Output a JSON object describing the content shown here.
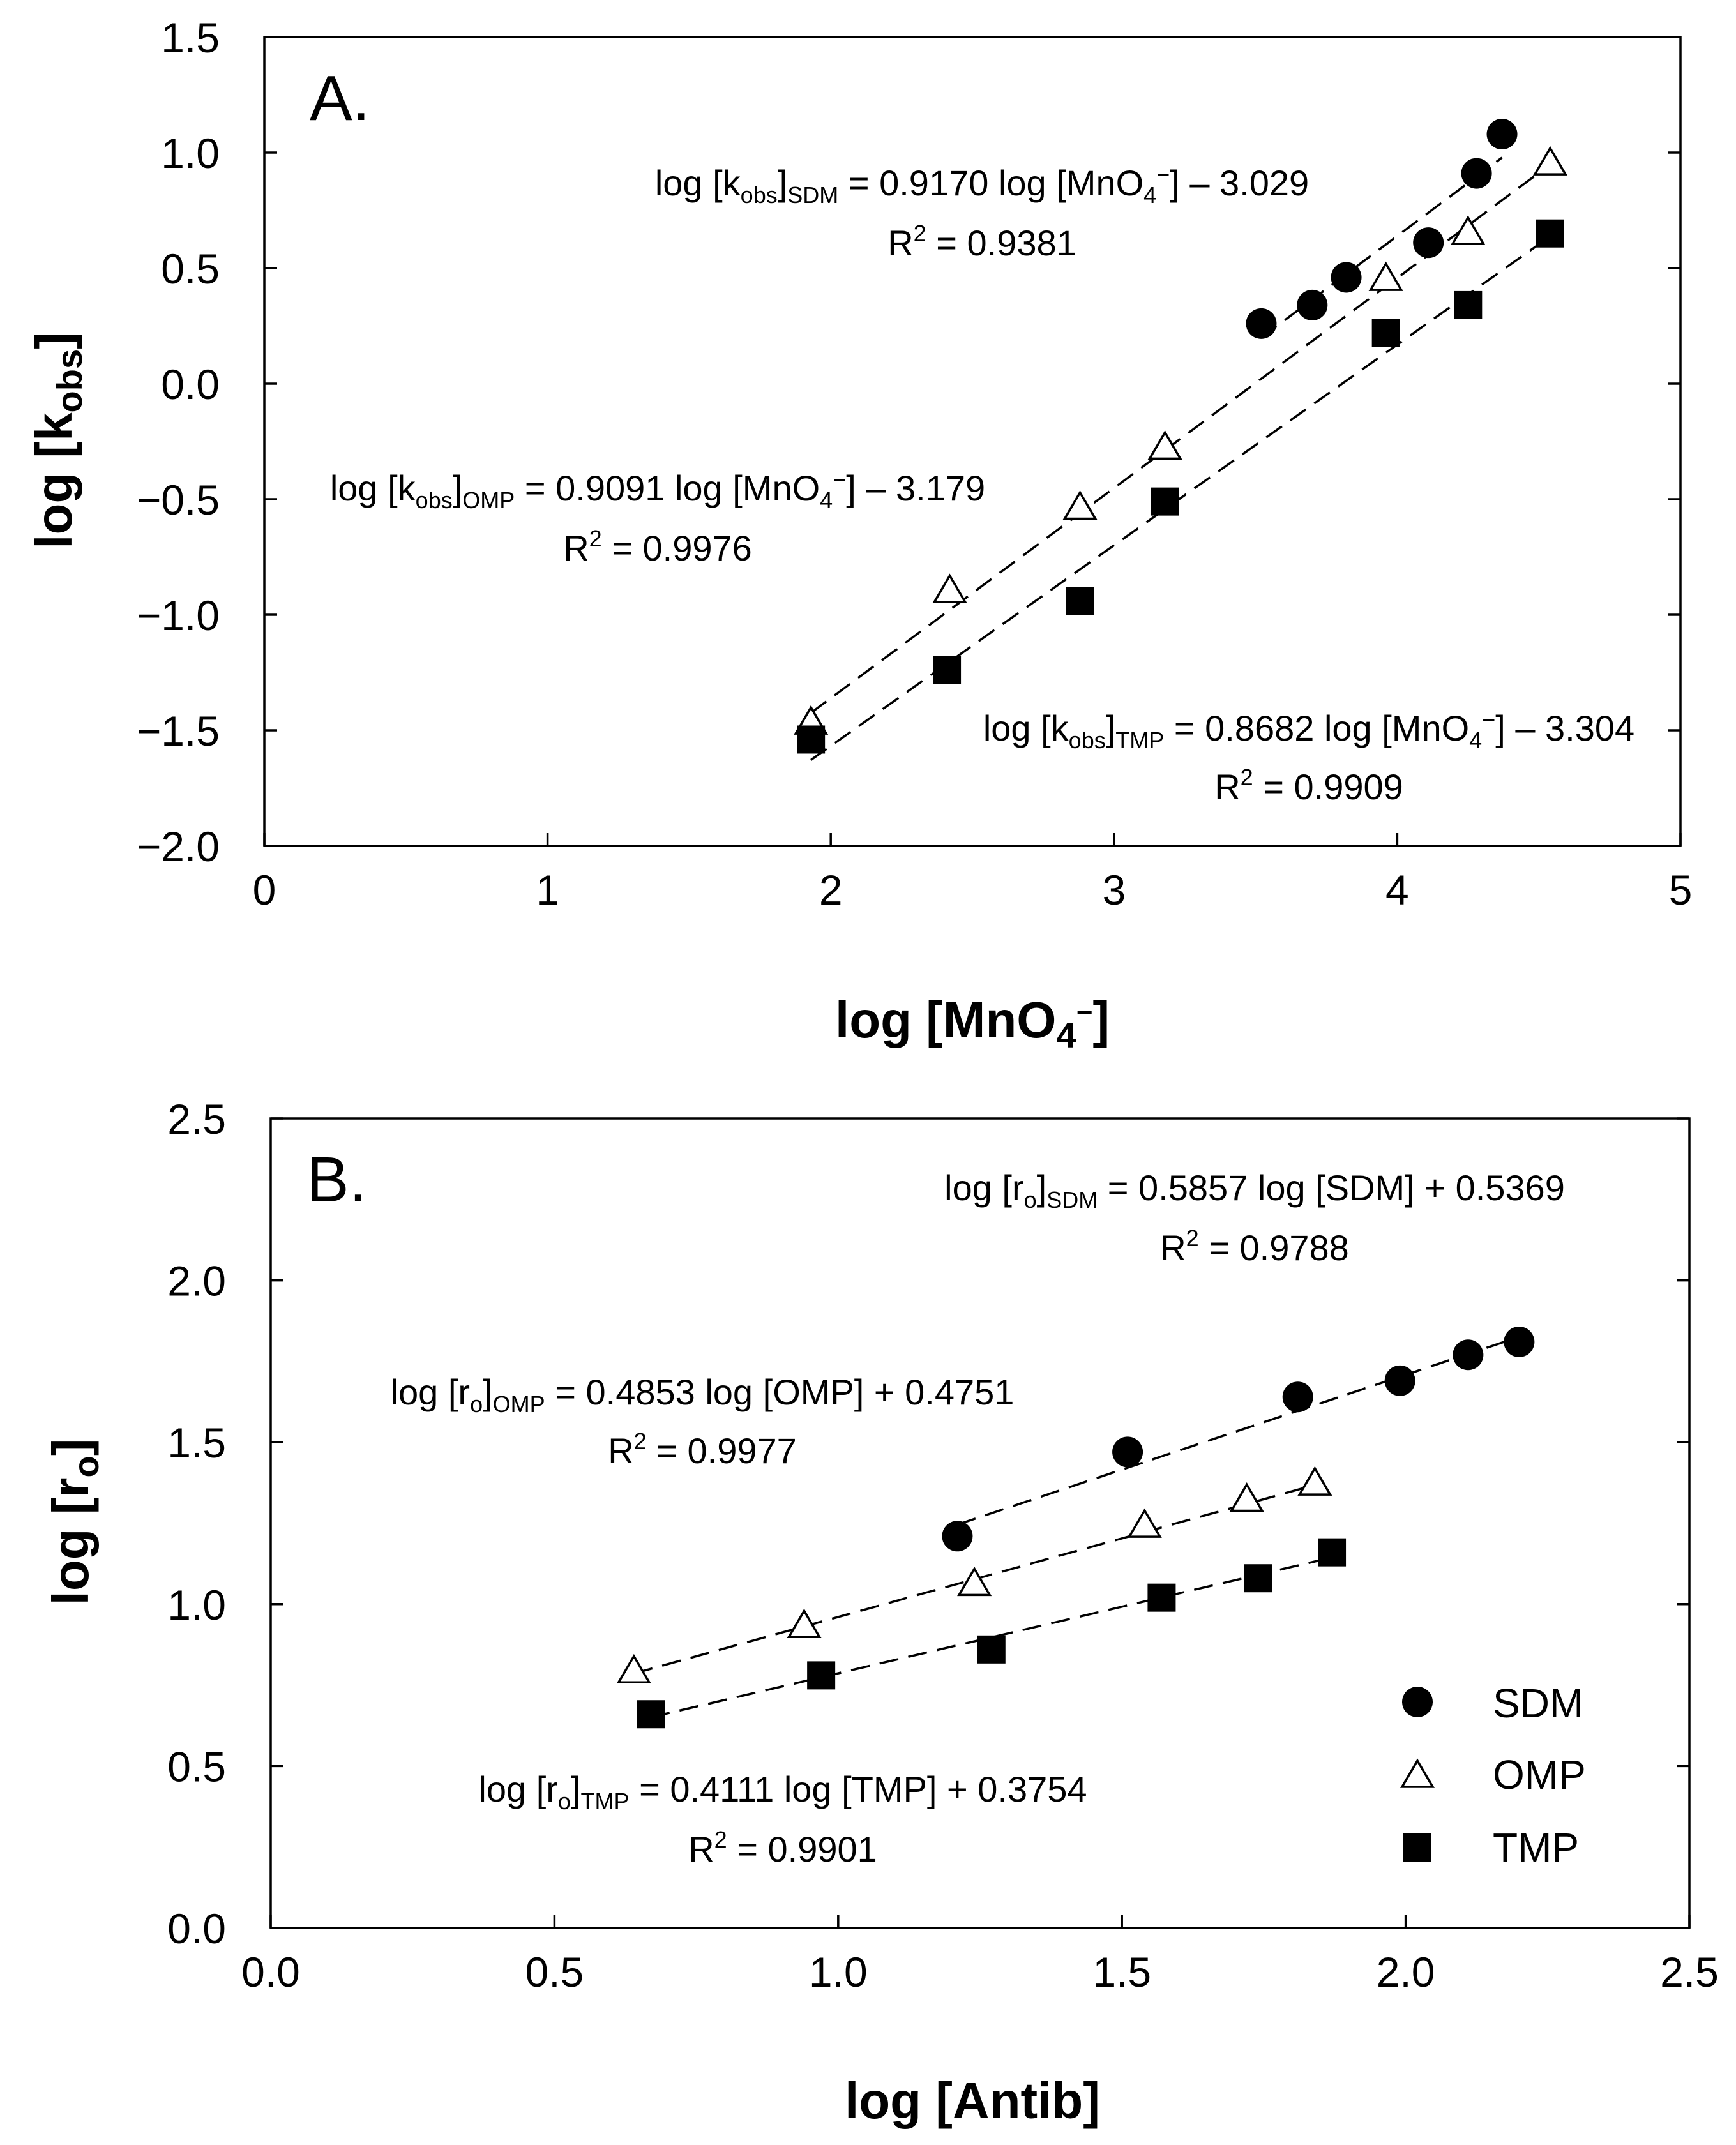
{
  "chart_data": [
    {
      "type": "scatter",
      "panel": "A.",
      "xlabel_main": "log [MnO",
      "xlabel_sub": "4",
      "xlabel_sup": "−",
      "xlabel_end": "]",
      "ylabel_main": "log [k",
      "ylabel_sub": "obs",
      "ylabel_end": "]",
      "xlim": [
        0,
        5
      ],
      "ylim": [
        -2.0,
        1.5
      ],
      "xticks": [
        0,
        1,
        2,
        3,
        4,
        5
      ],
      "xtick_labels": [
        "0",
        "1",
        "2",
        "3",
        "4",
        "5"
      ],
      "yticks": [
        1.5,
        1.0,
        0.5,
        0.0,
        -0.5,
        -1.0,
        -1.5,
        -2.0
      ],
      "ytick_labels": [
        "1.5",
        "1.0",
        "0.5",
        "0.0",
        "−0.5",
        "−1.0",
        "−1.5",
        "−2.0"
      ],
      "series": [
        {
          "name": "SDM",
          "marker": "circle",
          "points": [
            [
              3.52,
              0.26
            ],
            [
              3.7,
              0.34
            ],
            [
              3.82,
              0.46
            ],
            [
              4.11,
              0.61
            ],
            [
              4.28,
              0.91
            ],
            [
              4.37,
              1.08
            ]
          ],
          "fit": {
            "slope": 0.917,
            "intercept": -3.029,
            "x_range": [
              3.52,
              4.37
            ]
          },
          "eq": {
            "pre": "log [k",
            "sub1": "obs",
            "mid": "]",
            "sub2": "SDM",
            "post": " = 0.9170 log [MnO",
            "sub3": "4",
            "sup3": "−",
            "tail": "] – 3.029",
            "r2_pre": "R",
            "r2_sup": "2",
            "r2_post": " = 0.9381"
          }
        },
        {
          "name": "OMP",
          "marker": "triangle",
          "points": [
            [
              1.93,
              -1.47
            ],
            [
              2.42,
              -0.9
            ],
            [
              2.88,
              -0.54
            ],
            [
              3.18,
              -0.28
            ],
            [
              3.96,
              0.45
            ],
            [
              4.25,
              0.65
            ],
            [
              4.54,
              0.95
            ]
          ],
          "fit": {
            "slope": 0.9091,
            "intercept": -3.179,
            "x_range": [
              1.93,
              4.54
            ]
          },
          "eq": {
            "pre": "log [k",
            "sub1": "obs",
            "mid": "]",
            "sub2": "OMP",
            "post": " = 0.9091 log [MnO",
            "sub3": "4",
            "sup3": "−",
            "tail": "] – 3.179",
            "r2_pre": "R",
            "r2_sup": "2",
            "r2_post": " = 0.9976"
          }
        },
        {
          "name": "TMP",
          "marker": "square",
          "points": [
            [
              1.93,
              -1.54
            ],
            [
              2.41,
              -1.24
            ],
            [
              2.88,
              -0.94
            ],
            [
              3.18,
              -0.51
            ],
            [
              3.96,
              0.22
            ],
            [
              4.25,
              0.34
            ],
            [
              4.54,
              0.65
            ]
          ],
          "fit": {
            "slope": 0.8682,
            "intercept": -3.304,
            "x_range": [
              1.93,
              4.54
            ]
          },
          "eq": {
            "pre": "log [k",
            "sub1": "obs",
            "mid": "]",
            "sub2": "TMP",
            "post": " = 0.8682 log [MnO",
            "sub3": "4",
            "sup3": "−",
            "tail": "] – 3.304",
            "r2_pre": "R",
            "r2_sup": "2",
            "r2_post": " = 0.9909"
          }
        }
      ]
    },
    {
      "type": "scatter",
      "panel": "B.",
      "xlabel": "log [Antib]",
      "ylabel_main": "log [r",
      "ylabel_sub": "o",
      "ylabel_end": "]",
      "xlim": [
        0.0,
        2.5
      ],
      "ylim": [
        0.0,
        2.5
      ],
      "xticks": [
        0.0,
        0.5,
        1.0,
        1.5,
        2.0,
        2.5
      ],
      "xtick_labels": [
        "0.0",
        "0.5",
        "1.0",
        "1.5",
        "2.0",
        "2.5"
      ],
      "yticks": [
        2.5,
        2.0,
        1.5,
        1.0,
        0.5,
        0.0
      ],
      "ytick_labels": [
        "2.5",
        "2.0",
        "1.5",
        "1.0",
        "0.5",
        "0.0"
      ],
      "legend": {
        "position": "bottom-right",
        "items": [
          "SDM",
          "OMP",
          "TMP"
        ]
      },
      "series": [
        {
          "name": "SDM",
          "marker": "circle",
          "points": [
            [
              1.21,
              1.21
            ],
            [
              1.51,
              1.47
            ],
            [
              1.81,
              1.64
            ],
            [
              1.99,
              1.69
            ],
            [
              2.11,
              1.77
            ],
            [
              2.2,
              1.81
            ]
          ],
          "fit": {
            "slope": 0.5857,
            "intercept": 0.5369,
            "x_range": [
              1.21,
              2.2
            ]
          },
          "eq": {
            "pre": "log [r",
            "sub1": "o",
            "mid": "]",
            "sub2": "SDM",
            "post": " = 0.5857 log [SDM] + 0.5369",
            "r2_pre": "R",
            "r2_sup": "2",
            "r2_post": " = 0.9788"
          }
        },
        {
          "name": "OMP",
          "marker": "triangle",
          "points": [
            [
              0.64,
              0.79
            ],
            [
              0.94,
              0.93
            ],
            [
              1.24,
              1.06
            ],
            [
              1.54,
              1.24
            ],
            [
              1.72,
              1.32
            ],
            [
              1.84,
              1.37
            ]
          ],
          "fit": {
            "slope": 0.4853,
            "intercept": 0.4751,
            "x_range": [
              0.64,
              1.84
            ]
          },
          "eq": {
            "pre": "log [r",
            "sub1": "o",
            "mid": "]",
            "sub2": "OMP",
            "post": " = 0.4853 log [OMP] + 0.4751",
            "r2_pre": "R",
            "r2_sup": "2",
            "r2_post": " = 0.9977"
          }
        },
        {
          "name": "TMP",
          "marker": "square",
          "points": [
            [
              0.67,
              0.66
            ],
            [
              0.97,
              0.78
            ],
            [
              1.27,
              0.86
            ],
            [
              1.57,
              1.02
            ],
            [
              1.74,
              1.08
            ],
            [
              1.87,
              1.16
            ]
          ],
          "fit": {
            "slope": 0.4111,
            "intercept": 0.3754,
            "x_range": [
              0.67,
              1.87
            ]
          },
          "eq": {
            "pre": "log [r",
            "sub1": "o",
            "mid": "]",
            "sub2": "TMP",
            "post": " = 0.4111 log [TMP] + 0.3754",
            "r2_pre": "R",
            "r2_sup": "2",
            "r2_post": " = 0.9901"
          }
        }
      ]
    }
  ]
}
